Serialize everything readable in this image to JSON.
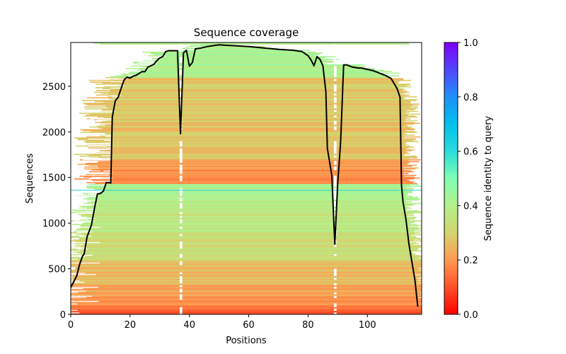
{
  "chart_data": {
    "type": "heatmap",
    "title": "Sequence coverage",
    "xlabel": "Positions",
    "ylabel": "Sequences",
    "xlim": [
      0,
      118.3
    ],
    "ylim": [
      0,
      2980
    ],
    "x_ticks": [
      0,
      20,
      40,
      60,
      80,
      100
    ],
    "x_tick_labels": [
      "0",
      "20",
      "40",
      "60",
      "80",
      "100"
    ],
    "y_ticks": [
      0,
      500,
      1000,
      1500,
      2000,
      2500
    ],
    "y_tick_labels": [
      "0",
      "500",
      "1000",
      "1500",
      "2000",
      "2500"
    ],
    "grid": false,
    "colorbar": {
      "label": "Sequence identity to query",
      "colormap": "rainbow_r",
      "range": [
        0,
        1
      ],
      "ticks": [
        0.0,
        0.2,
        0.4,
        0.6,
        0.8,
        1.0
      ],
      "tick_labels": [
        "0.0",
        "0.2",
        "0.4",
        "0.6",
        "0.8",
        "1.0"
      ],
      "placement": "right"
    },
    "query_row": {
      "sequence_index": 1360,
      "identity": 0.62
    },
    "identity_bands": [
      {
        "from": 0,
        "to": 60,
        "identity": 0.12
      },
      {
        "from": 60,
        "to": 200,
        "identity": 0.18
      },
      {
        "from": 200,
        "to": 330,
        "identity": 0.22
      },
      {
        "from": 330,
        "to": 600,
        "identity": 0.26
      },
      {
        "from": 600,
        "to": 900,
        "identity": 0.33
      },
      {
        "from": 900,
        "to": 1200,
        "identity": 0.37
      },
      {
        "from": 1200,
        "to": 1430,
        "identity": 0.41
      },
      {
        "from": 1430,
        "to": 1700,
        "identity": 0.2
      },
      {
        "from": 1700,
        "to": 2200,
        "identity": 0.27
      },
      {
        "from": 2200,
        "to": 2600,
        "identity": 0.28
      },
      {
        "from": 2600,
        "to": 2980,
        "identity": 0.41
      }
    ],
    "gap_columns": [
      37,
      89
    ],
    "series": [
      {
        "name": "coverage",
        "color": "#000000",
        "x": [
          0,
          2,
          3,
          4,
          4.5,
          5.5,
          7,
          8,
          9,
          10,
          11,
          12,
          13.5,
          14,
          15,
          16,
          17,
          18,
          19,
          20,
          21,
          22,
          23,
          24,
          25,
          26,
          27,
          28,
          29,
          30,
          31,
          32,
          33,
          34,
          36,
          37,
          38,
          39,
          40,
          41,
          42,
          44,
          46,
          48,
          50,
          52,
          55,
          60,
          65,
          70,
          75,
          78,
          80,
          81,
          82,
          83,
          84,
          85,
          86,
          86.5,
          88,
          89,
          90,
          91,
          92,
          93,
          95,
          97,
          98,
          100,
          102,
          104,
          106,
          108,
          110,
          111,
          111.5,
          112,
          113,
          114,
          115,
          116,
          117
        ],
        "y": [
          295,
          420,
          550,
          640,
          660,
          850,
          980,
          1160,
          1320,
          1325,
          1350,
          1445,
          1440,
          2160,
          2340,
          2380,
          2480,
          2570,
          2600,
          2590,
          2610,
          2620,
          2640,
          2660,
          2660,
          2710,
          2725,
          2740,
          2780,
          2810,
          2825,
          2880,
          2890,
          2890,
          2890,
          1980,
          2865,
          2895,
          2720,
          2760,
          2910,
          2920,
          2935,
          2945,
          2955,
          2950,
          2945,
          2935,
          2920,
          2905,
          2895,
          2880,
          2835,
          2790,
          2725,
          2825,
          2795,
          2725,
          2440,
          1820,
          1520,
          770,
          1430,
          1895,
          2735,
          2735,
          2710,
          2700,
          2700,
          2685,
          2670,
          2645,
          2620,
          2585,
          2475,
          2380,
          1410,
          1235,
          1040,
          770,
          575,
          380,
          85
        ]
      }
    ]
  }
}
